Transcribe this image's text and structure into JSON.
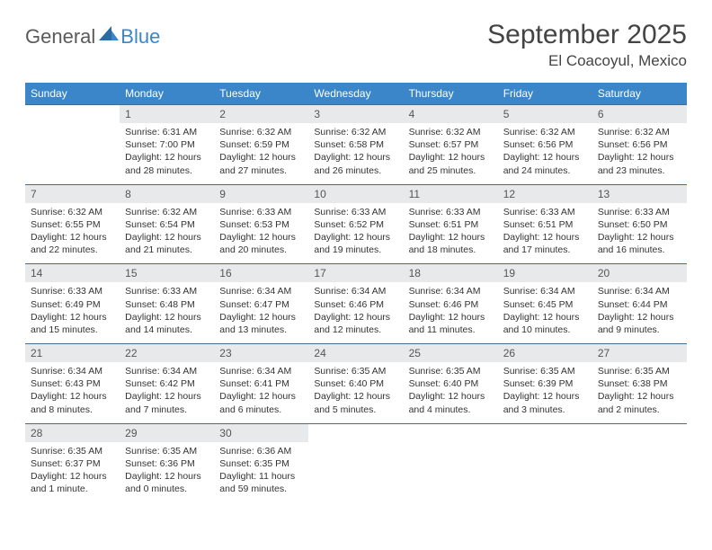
{
  "logo": {
    "text1": "General",
    "text2": "Blue"
  },
  "title": "September 2025",
  "location": "El Coacoyul, Mexico",
  "colors": {
    "header_bg": "#3a86c8",
    "header_text": "#ffffff",
    "daynum_bg": "#e8e9ea",
    "daynum_text": "#555555",
    "body_text": "#333333",
    "rule": "#4a6a8a",
    "page_bg": "#ffffff"
  },
  "dayNames": [
    "Sunday",
    "Monday",
    "Tuesday",
    "Wednesday",
    "Thursday",
    "Friday",
    "Saturday"
  ],
  "weeks": [
    [
      {
        "n": "",
        "sr": "",
        "ss": "",
        "dl": ""
      },
      {
        "n": "1",
        "sr": "Sunrise: 6:31 AM",
        "ss": "Sunset: 7:00 PM",
        "dl": "Daylight: 12 hours and 28 minutes."
      },
      {
        "n": "2",
        "sr": "Sunrise: 6:32 AM",
        "ss": "Sunset: 6:59 PM",
        "dl": "Daylight: 12 hours and 27 minutes."
      },
      {
        "n": "3",
        "sr": "Sunrise: 6:32 AM",
        "ss": "Sunset: 6:58 PM",
        "dl": "Daylight: 12 hours and 26 minutes."
      },
      {
        "n": "4",
        "sr": "Sunrise: 6:32 AM",
        "ss": "Sunset: 6:57 PM",
        "dl": "Daylight: 12 hours and 25 minutes."
      },
      {
        "n": "5",
        "sr": "Sunrise: 6:32 AM",
        "ss": "Sunset: 6:56 PM",
        "dl": "Daylight: 12 hours and 24 minutes."
      },
      {
        "n": "6",
        "sr": "Sunrise: 6:32 AM",
        "ss": "Sunset: 6:56 PM",
        "dl": "Daylight: 12 hours and 23 minutes."
      }
    ],
    [
      {
        "n": "7",
        "sr": "Sunrise: 6:32 AM",
        "ss": "Sunset: 6:55 PM",
        "dl": "Daylight: 12 hours and 22 minutes."
      },
      {
        "n": "8",
        "sr": "Sunrise: 6:32 AM",
        "ss": "Sunset: 6:54 PM",
        "dl": "Daylight: 12 hours and 21 minutes."
      },
      {
        "n": "9",
        "sr": "Sunrise: 6:33 AM",
        "ss": "Sunset: 6:53 PM",
        "dl": "Daylight: 12 hours and 20 minutes."
      },
      {
        "n": "10",
        "sr": "Sunrise: 6:33 AM",
        "ss": "Sunset: 6:52 PM",
        "dl": "Daylight: 12 hours and 19 minutes."
      },
      {
        "n": "11",
        "sr": "Sunrise: 6:33 AM",
        "ss": "Sunset: 6:51 PM",
        "dl": "Daylight: 12 hours and 18 minutes."
      },
      {
        "n": "12",
        "sr": "Sunrise: 6:33 AM",
        "ss": "Sunset: 6:51 PM",
        "dl": "Daylight: 12 hours and 17 minutes."
      },
      {
        "n": "13",
        "sr": "Sunrise: 6:33 AM",
        "ss": "Sunset: 6:50 PM",
        "dl": "Daylight: 12 hours and 16 minutes."
      }
    ],
    [
      {
        "n": "14",
        "sr": "Sunrise: 6:33 AM",
        "ss": "Sunset: 6:49 PM",
        "dl": "Daylight: 12 hours and 15 minutes."
      },
      {
        "n": "15",
        "sr": "Sunrise: 6:33 AM",
        "ss": "Sunset: 6:48 PM",
        "dl": "Daylight: 12 hours and 14 minutes."
      },
      {
        "n": "16",
        "sr": "Sunrise: 6:34 AM",
        "ss": "Sunset: 6:47 PM",
        "dl": "Daylight: 12 hours and 13 minutes."
      },
      {
        "n": "17",
        "sr": "Sunrise: 6:34 AM",
        "ss": "Sunset: 6:46 PM",
        "dl": "Daylight: 12 hours and 12 minutes."
      },
      {
        "n": "18",
        "sr": "Sunrise: 6:34 AM",
        "ss": "Sunset: 6:46 PM",
        "dl": "Daylight: 12 hours and 11 minutes."
      },
      {
        "n": "19",
        "sr": "Sunrise: 6:34 AM",
        "ss": "Sunset: 6:45 PM",
        "dl": "Daylight: 12 hours and 10 minutes."
      },
      {
        "n": "20",
        "sr": "Sunrise: 6:34 AM",
        "ss": "Sunset: 6:44 PM",
        "dl": "Daylight: 12 hours and 9 minutes."
      }
    ],
    [
      {
        "n": "21",
        "sr": "Sunrise: 6:34 AM",
        "ss": "Sunset: 6:43 PM",
        "dl": "Daylight: 12 hours and 8 minutes."
      },
      {
        "n": "22",
        "sr": "Sunrise: 6:34 AM",
        "ss": "Sunset: 6:42 PM",
        "dl": "Daylight: 12 hours and 7 minutes."
      },
      {
        "n": "23",
        "sr": "Sunrise: 6:34 AM",
        "ss": "Sunset: 6:41 PM",
        "dl": "Daylight: 12 hours and 6 minutes."
      },
      {
        "n": "24",
        "sr": "Sunrise: 6:35 AM",
        "ss": "Sunset: 6:40 PM",
        "dl": "Daylight: 12 hours and 5 minutes."
      },
      {
        "n": "25",
        "sr": "Sunrise: 6:35 AM",
        "ss": "Sunset: 6:40 PM",
        "dl": "Daylight: 12 hours and 4 minutes."
      },
      {
        "n": "26",
        "sr": "Sunrise: 6:35 AM",
        "ss": "Sunset: 6:39 PM",
        "dl": "Daylight: 12 hours and 3 minutes."
      },
      {
        "n": "27",
        "sr": "Sunrise: 6:35 AM",
        "ss": "Sunset: 6:38 PM",
        "dl": "Daylight: 12 hours and 2 minutes."
      }
    ],
    [
      {
        "n": "28",
        "sr": "Sunrise: 6:35 AM",
        "ss": "Sunset: 6:37 PM",
        "dl": "Daylight: 12 hours and 1 minute."
      },
      {
        "n": "29",
        "sr": "Sunrise: 6:35 AM",
        "ss": "Sunset: 6:36 PM",
        "dl": "Daylight: 12 hours and 0 minutes."
      },
      {
        "n": "30",
        "sr": "Sunrise: 6:36 AM",
        "ss": "Sunset: 6:35 PM",
        "dl": "Daylight: 11 hours and 59 minutes."
      },
      {
        "n": "",
        "sr": "",
        "ss": "",
        "dl": ""
      },
      {
        "n": "",
        "sr": "",
        "ss": "",
        "dl": ""
      },
      {
        "n": "",
        "sr": "",
        "ss": "",
        "dl": ""
      },
      {
        "n": "",
        "sr": "",
        "ss": "",
        "dl": ""
      }
    ]
  ]
}
